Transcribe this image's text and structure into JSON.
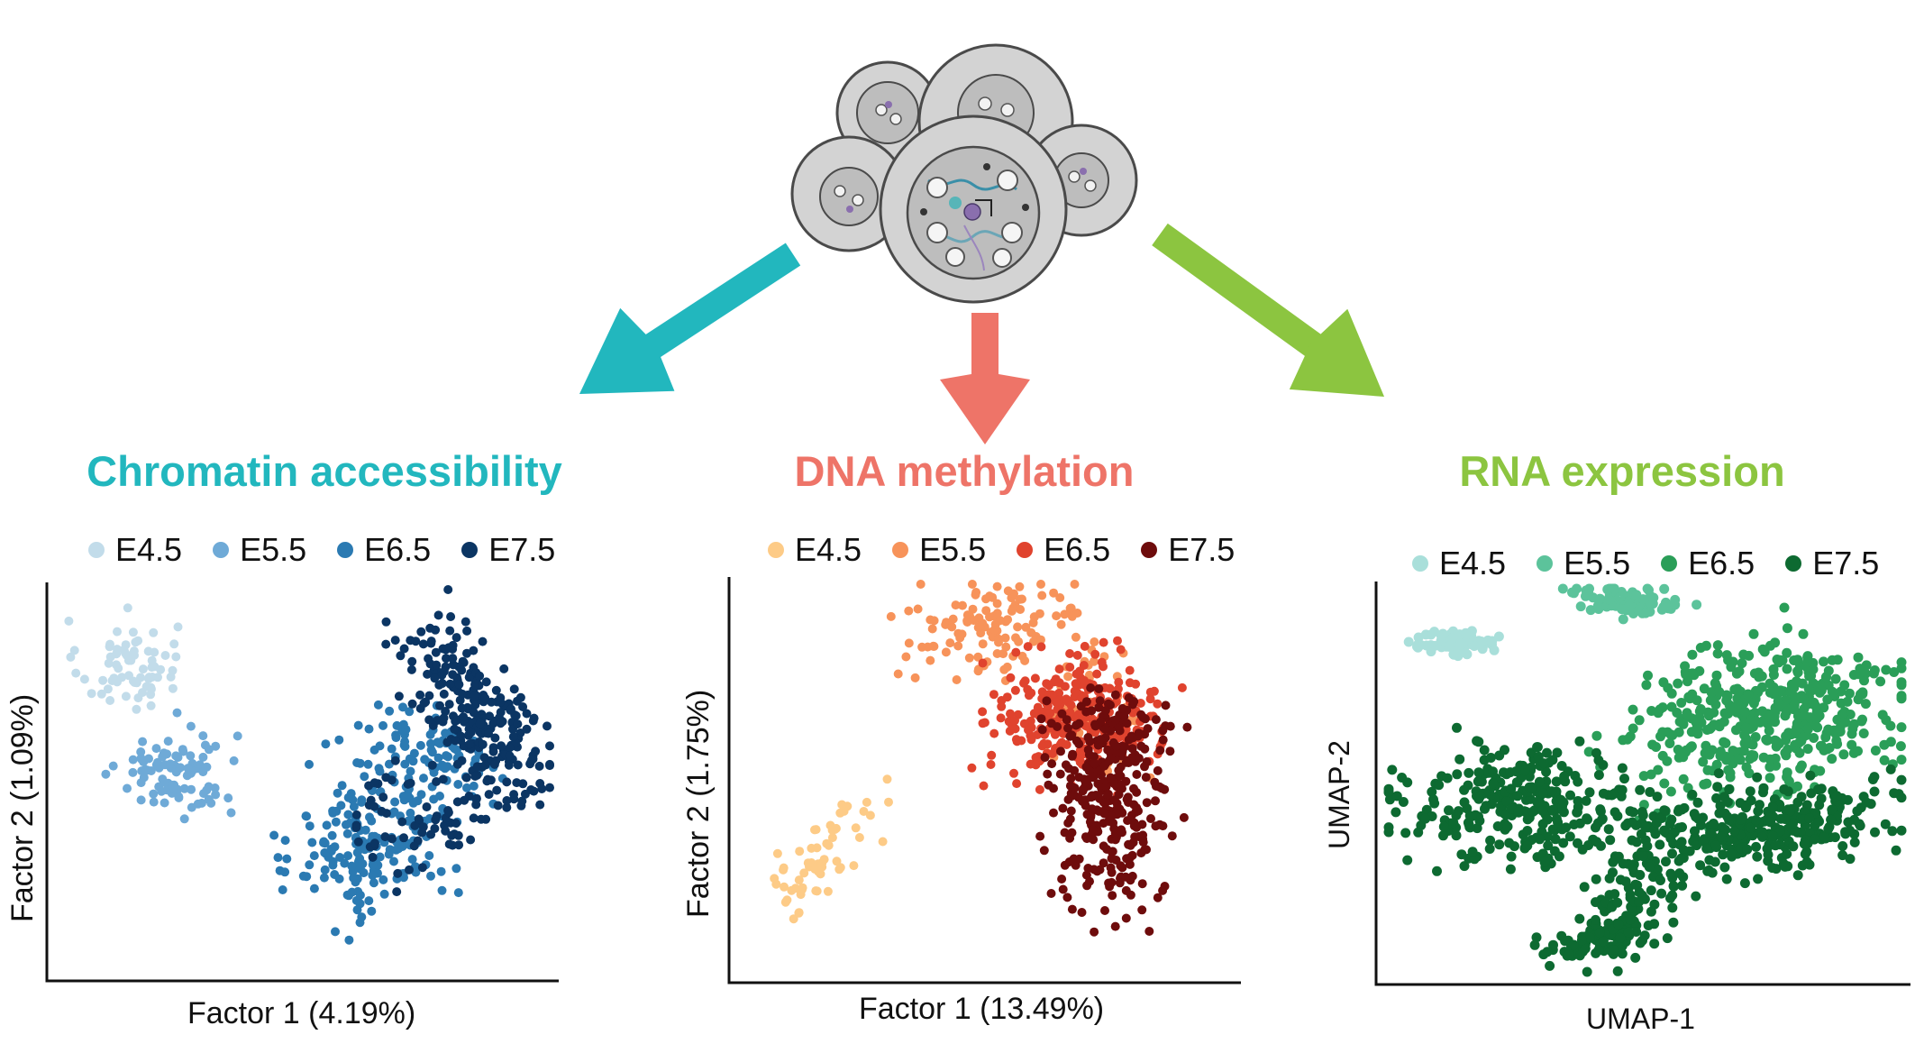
{
  "colors": {
    "arrow_left": "#22B7BE",
    "arrow_mid": "#EE7468",
    "arrow_right": "#8CC540",
    "cell_fill": "#D3D3D3",
    "cell_inner": "#BDBDBD",
    "cell_stroke": "#4A4A4A"
  },
  "panels": [
    {
      "title": "Chromatin accessibility",
      "title_color": "#22B7BE",
      "legend": [
        {
          "label": "E4.5",
          "color": "#C2DCEA"
        },
        {
          "label": "E5.5",
          "color": "#6FAAD7"
        },
        {
          "label": "E6.5",
          "color": "#2B7AB2"
        },
        {
          "label": "E7.5",
          "color": "#0B3563"
        }
      ],
      "xlabel": "Factor 1 (4.19%)",
      "ylabel": "Factor 2 (1.09%)"
    },
    {
      "title": "DNA methylation",
      "title_color": "#EE7468",
      "legend": [
        {
          "label": "E4.5",
          "color": "#FDCB87"
        },
        {
          "label": "E5.5",
          "color": "#F7935A"
        },
        {
          "label": "E6.5",
          "color": "#E0432E"
        },
        {
          "label": "E7.5",
          "color": "#6E0C0C"
        }
      ],
      "xlabel": "Factor 1 (13.49%)",
      "ylabel": "Factor 2 (1.75%)"
    },
    {
      "title": "RNA expression",
      "title_color": "#8CC540",
      "legend": [
        {
          "label": "E4.5",
          "color": "#A9DFDA"
        },
        {
          "label": "E5.5",
          "color": "#5CC39B"
        },
        {
          "label": "E6.5",
          "color": "#2A9E58"
        },
        {
          "label": "E7.5",
          "color": "#0D6A31"
        }
      ],
      "xlabel": "UMAP-1",
      "ylabel": "UMAP-2"
    }
  ],
  "chart_data": [
    {
      "type": "scatter",
      "title": "Chromatin accessibility",
      "xlabel": "Factor 1 (4.19%)",
      "ylabel": "Factor 2 (1.09%)",
      "xlim": [
        0,
        10
      ],
      "ylim": [
        0,
        10
      ],
      "grid": false,
      "legend_position": "top",
      "series": [
        {
          "name": "E4.5",
          "color": "#C2DCEA",
          "clusters": [
            {
              "cx": 1.4,
              "cy": 8.0,
              "sx": 0.5,
              "sy": 0.6,
              "rot": 0,
              "n": 70
            }
          ]
        },
        {
          "name": "E5.5",
          "color": "#6FAAD7",
          "clusters": [
            {
              "cx": 2.4,
              "cy": 5.2,
              "sx": 0.6,
              "sy": 0.6,
              "rot": 0,
              "n": 90
            }
          ]
        },
        {
          "name": "E6.5",
          "color": "#2B7AB2",
          "clusters": [
            {
              "cx": 6.3,
              "cy": 3.2,
              "sx": 0.75,
              "sy": 0.9,
              "rot": 0.2,
              "n": 170
            },
            {
              "cx": 7.5,
              "cy": 5.5,
              "sx": 0.8,
              "sy": 0.8,
              "rot": 0.6,
              "n": 110
            }
          ]
        },
        {
          "name": "E7.5",
          "color": "#0B3563",
          "clusters": [
            {
              "cx": 8.5,
              "cy": 6.8,
              "sx": 0.55,
              "sy": 1.3,
              "rot": 0.4,
              "n": 250
            },
            {
              "cx": 7.4,
              "cy": 4.0,
              "sx": 0.7,
              "sy": 0.7,
              "rot": 0.3,
              "n": 70
            }
          ]
        }
      ]
    },
    {
      "type": "scatter",
      "title": "DNA methylation",
      "xlabel": "Factor 1 (13.49%)",
      "ylabel": "Factor 2 (1.75%)",
      "xlim": [
        0,
        10
      ],
      "ylim": [
        0,
        10
      ],
      "grid": false,
      "legend_position": "top",
      "series": [
        {
          "name": "E4.5",
          "color": "#FDCB87",
          "clusters": [
            {
              "cx": 1.7,
              "cy": 3.0,
              "sx": 0.35,
              "sy": 0.9,
              "rot": -0.6,
              "n": 60
            }
          ]
        },
        {
          "name": "E5.5",
          "color": "#F7935A",
          "clusters": [
            {
              "cx": 5.2,
              "cy": 8.9,
              "sx": 1.0,
              "sy": 0.6,
              "rot": 0.2,
              "n": 120
            },
            {
              "cx": 7.1,
              "cy": 6.6,
              "sx": 0.5,
              "sy": 0.8,
              "rot": 0.2,
              "n": 50
            }
          ]
        },
        {
          "name": "E6.5",
          "color": "#E0432E",
          "clusters": [
            {
              "cx": 6.8,
              "cy": 6.6,
              "sx": 0.85,
              "sy": 0.8,
              "rot": 0,
              "n": 260
            }
          ]
        },
        {
          "name": "E7.5",
          "color": "#6E0C0C",
          "clusters": [
            {
              "cx": 7.5,
              "cy": 4.3,
              "sx": 0.6,
              "sy": 1.3,
              "rot": 0.1,
              "n": 280
            },
            {
              "cx": 7.6,
              "cy": 6.0,
              "sx": 0.6,
              "sy": 0.7,
              "rot": 0,
              "n": 60
            }
          ]
        }
      ]
    },
    {
      "type": "scatter",
      "title": "RNA expression",
      "xlabel": "UMAP-1",
      "ylabel": "UMAP-2",
      "xlim": [
        0,
        10
      ],
      "ylim": [
        0,
        10
      ],
      "grid": false,
      "legend_position": "top",
      "series": [
        {
          "name": "E4.5",
          "color": "#A9DFDA",
          "clusters": [
            {
              "cx": 1.3,
              "cy": 8.6,
              "sx": 0.45,
              "sy": 0.18,
              "rot": 0,
              "n": 60
            }
          ]
        },
        {
          "name": "E5.5",
          "color": "#5CC39B",
          "clusters": [
            {
              "cx": 4.6,
              "cy": 9.7,
              "sx": 0.6,
              "sy": 0.22,
              "rot": -0.15,
              "n": 80
            }
          ]
        },
        {
          "name": "E6.5",
          "color": "#2A9E58",
          "clusters": [
            {
              "cx": 7.3,
              "cy": 6.6,
              "sx": 1.4,
              "sy": 1.0,
              "rot": 0.35,
              "n": 450
            }
          ]
        },
        {
          "name": "E7.5",
          "color": "#0D6A31",
          "clusters": [
            {
              "cx": 2.7,
              "cy": 4.3,
              "sx": 1.2,
              "sy": 0.75,
              "rot": -0.1,
              "n": 300
            },
            {
              "cx": 7.3,
              "cy": 3.8,
              "sx": 1.2,
              "sy": 0.6,
              "rot": 0.1,
              "n": 300
            },
            {
              "cx": 4.9,
              "cy": 2.0,
              "sx": 0.45,
              "sy": 0.9,
              "rot": -0.5,
              "n": 110
            },
            {
              "cx": 4.0,
              "cy": 0.8,
              "sx": 0.5,
              "sy": 0.25,
              "rot": 0.2,
              "n": 70
            }
          ]
        }
      ]
    }
  ]
}
